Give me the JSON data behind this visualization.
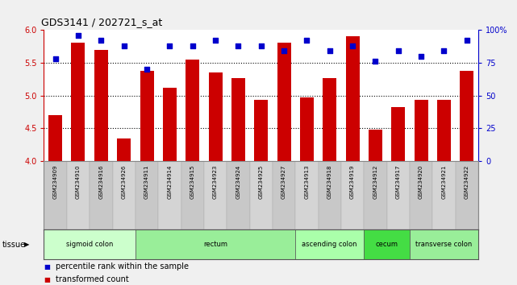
{
  "title": "GDS3141 / 202721_s_at",
  "samples": [
    "GSM234909",
    "GSM234910",
    "GSM234916",
    "GSM234926",
    "GSM234911",
    "GSM234914",
    "GSM234915",
    "GSM234923",
    "GSM234924",
    "GSM234925",
    "GSM234927",
    "GSM234913",
    "GSM234918",
    "GSM234919",
    "GSM234912",
    "GSM234917",
    "GSM234920",
    "GSM234921",
    "GSM234922"
  ],
  "bar_values": [
    4.7,
    5.8,
    5.7,
    4.35,
    5.38,
    5.12,
    5.55,
    5.35,
    5.27,
    4.93,
    5.8,
    4.97,
    5.27,
    5.9,
    4.48,
    4.82,
    4.93,
    4.93,
    5.38
  ],
  "dot_values": [
    78,
    96,
    92,
    88,
    70,
    88,
    88,
    92,
    88,
    88,
    84,
    92,
    84,
    88,
    76,
    84,
    80,
    84,
    92
  ],
  "ylim_left": [
    4.0,
    6.0
  ],
  "ylim_right": [
    0,
    100
  ],
  "yticks_left": [
    4.0,
    4.5,
    5.0,
    5.5,
    6.0
  ],
  "yticks_right": [
    0,
    25,
    50,
    75,
    100
  ],
  "ytick_labels_right": [
    "0",
    "25",
    "50",
    "75",
    "100%"
  ],
  "hlines": [
    4.5,
    5.0,
    5.5
  ],
  "bar_color": "#cc0000",
  "dot_color": "#0000cc",
  "tissue_groups": [
    {
      "label": "sigmoid colon",
      "start": 0,
      "end": 4,
      "color": "#ccffcc"
    },
    {
      "label": "rectum",
      "start": 4,
      "end": 11,
      "color": "#99ee99"
    },
    {
      "label": "ascending colon",
      "start": 11,
      "end": 14,
      "color": "#aaffaa"
    },
    {
      "label": "cecum",
      "start": 14,
      "end": 16,
      "color": "#44dd44"
    },
    {
      "label": "transverse colon",
      "start": 16,
      "end": 19,
      "color": "#99ee99"
    }
  ],
  "legend_labels": [
    "transformed count",
    "percentile rank within the sample"
  ],
  "legend_colors": [
    "#cc0000",
    "#0000cc"
  ],
  "xlabel_tissue": "tissue",
  "fig_bg": "#f0f0f0",
  "plot_bg": "#ffffff",
  "xlab_bg_even": "#c8c8c8",
  "xlab_bg_odd": "#d4d4d4"
}
